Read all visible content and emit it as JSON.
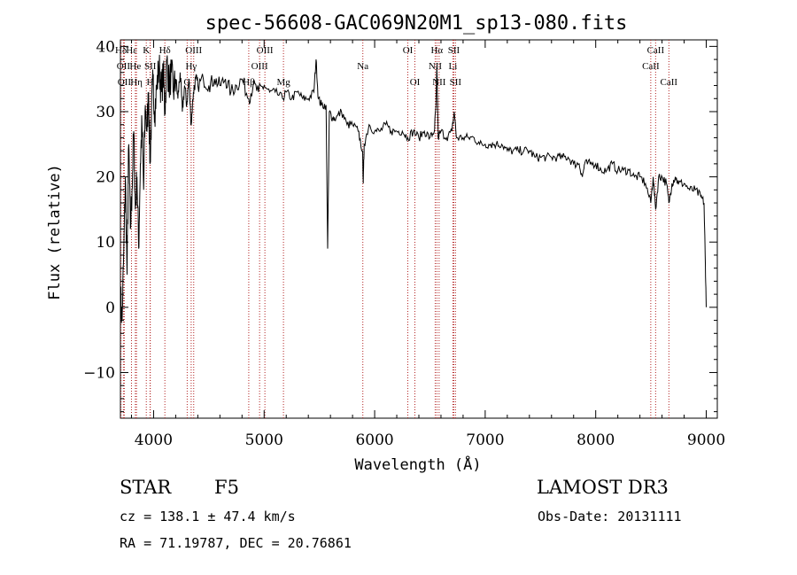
{
  "chart_data": {
    "type": "line",
    "title": "spec-56608-GAC069N20M1_sp13-080.fits",
    "xlabel": "Wavelength (Å)",
    "ylabel": "Flux (relative)",
    "xlim": [
      3700,
      9100
    ],
    "ylim": [
      -17,
      41
    ],
    "xticks": [
      4000,
      5000,
      6000,
      7000,
      8000,
      9000
    ],
    "yticks": [
      -10,
      0,
      10,
      20,
      30,
      40
    ],
    "grid": false,
    "line_color": "#000000",
    "marker_color": "#b22222",
    "series": [
      {
        "name": "spectrum",
        "points": [
          [
            3700,
            2
          ],
          [
            3715,
            -2
          ],
          [
            3730,
            8
          ],
          [
            3745,
            20
          ],
          [
            3760,
            5
          ],
          [
            3775,
            25
          ],
          [
            3790,
            12
          ],
          [
            3805,
            18
          ],
          [
            3820,
            27
          ],
          [
            3835,
            15
          ],
          [
            3850,
            20
          ],
          [
            3865,
            9
          ],
          [
            3880,
            22
          ],
          [
            3895,
            28
          ],
          [
            3910,
            18
          ],
          [
            3925,
            31
          ],
          [
            3940,
            27
          ],
          [
            3955,
            33
          ],
          [
            3968,
            22
          ],
          [
            3980,
            29
          ],
          [
            3995,
            35
          ],
          [
            4010,
            30
          ],
          [
            4030,
            34
          ],
          [
            4050,
            37
          ],
          [
            4070,
            33
          ],
          [
            4090,
            36
          ],
          [
            4102,
            30
          ],
          [
            4120,
            38
          ],
          [
            4140,
            34
          ],
          [
            4160,
            36
          ],
          [
            4180,
            33
          ],
          [
            4200,
            35
          ],
          [
            4220,
            32
          ],
          [
            4240,
            36
          ],
          [
            4260,
            30
          ],
          [
            4280,
            34
          ],
          [
            4300,
            31
          ],
          [
            4320,
            35
          ],
          [
            4340,
            28
          ],
          [
            4360,
            33
          ],
          [
            4380,
            35
          ],
          [
            4400,
            34
          ],
          [
            4450,
            35
          ],
          [
            4500,
            34
          ],
          [
            4550,
            35
          ],
          [
            4600,
            34
          ],
          [
            4650,
            35
          ],
          [
            4700,
            33
          ],
          [
            4750,
            34
          ],
          [
            4800,
            35
          ],
          [
            4861,
            32
          ],
          [
            4900,
            34
          ],
          [
            4950,
            33
          ],
          [
            5000,
            34
          ],
          [
            5050,
            33
          ],
          [
            5100,
            33
          ],
          [
            5167,
            32
          ],
          [
            5200,
            33
          ],
          [
            5250,
            32
          ],
          [
            5300,
            33
          ],
          [
            5350,
            32
          ],
          [
            5400,
            32
          ],
          [
            5450,
            33
          ],
          [
            5470,
            38
          ],
          [
            5490,
            32
          ],
          [
            5520,
            31
          ],
          [
            5560,
            31
          ],
          [
            5575,
            9
          ],
          [
            5590,
            30
          ],
          [
            5620,
            29
          ],
          [
            5650,
            29
          ],
          [
            5700,
            30
          ],
          [
            5750,
            28
          ],
          [
            5800,
            28
          ],
          [
            5850,
            27
          ],
          [
            5890,
            24
          ],
          [
            5897,
            19
          ],
          [
            5905,
            25
          ],
          [
            5950,
            28
          ],
          [
            6000,
            27
          ],
          [
            6050,
            27
          ],
          [
            6100,
            28
          ],
          [
            6150,
            27
          ],
          [
            6200,
            27
          ],
          [
            6250,
            27
          ],
          [
            6300,
            26
          ],
          [
            6350,
            27
          ],
          [
            6400,
            26
          ],
          [
            6450,
            27
          ],
          [
            6500,
            26
          ],
          [
            6540,
            27
          ],
          [
            6555,
            31
          ],
          [
            6563,
            37
          ],
          [
            6575,
            26
          ],
          [
            6600,
            27
          ],
          [
            6650,
            26
          ],
          [
            6700,
            27
          ],
          [
            6720,
            30
          ],
          [
            6740,
            26
          ],
          [
            6800,
            26
          ],
          [
            6850,
            26
          ],
          [
            6900,
            26
          ],
          [
            6950,
            25
          ],
          [
            7000,
            25
          ],
          [
            7050,
            25
          ],
          [
            7100,
            25
          ],
          [
            7150,
            25
          ],
          [
            7200,
            24
          ],
          [
            7250,
            24
          ],
          [
            7300,
            24
          ],
          [
            7350,
            24
          ],
          [
            7400,
            24
          ],
          [
            7450,
            23
          ],
          [
            7500,
            23
          ],
          [
            7550,
            23
          ],
          [
            7600,
            23
          ],
          [
            7650,
            23
          ],
          [
            7700,
            23
          ],
          [
            7750,
            23
          ],
          [
            7800,
            22
          ],
          [
            7850,
            22
          ],
          [
            7880,
            20
          ],
          [
            7900,
            22
          ],
          [
            7950,
            22
          ],
          [
            8000,
            22
          ],
          [
            8050,
            21
          ],
          [
            8100,
            21
          ],
          [
            8150,
            22
          ],
          [
            8200,
            21
          ],
          [
            8250,
            21
          ],
          [
            8300,
            21
          ],
          [
            8350,
            20
          ],
          [
            8400,
            20
          ],
          [
            8450,
            19
          ],
          [
            8498,
            16
          ],
          [
            8520,
            20
          ],
          [
            8542,
            15
          ],
          [
            8570,
            20
          ],
          [
            8600,
            20
          ],
          [
            8640,
            19
          ],
          [
            8662,
            16
          ],
          [
            8690,
            19
          ],
          [
            8720,
            20
          ],
          [
            8750,
            19
          ],
          [
            8800,
            19
          ],
          [
            8850,
            18
          ],
          [
            8900,
            18
          ],
          [
            8950,
            17
          ],
          [
            8980,
            16
          ],
          [
            8990,
            8
          ],
          [
            9000,
            0
          ]
        ]
      }
    ],
    "lines": [
      {
        "label": "Hδ",
        "wl": 3705,
        "row": 0
      },
      {
        "label": "OII",
        "wl": 3727,
        "row": 1
      },
      {
        "label": "OII",
        "wl": 3735,
        "row": 2
      },
      {
        "label": "Hε",
        "wl": 3800,
        "row": 0
      },
      {
        "label": "He",
        "wl": 3835,
        "row": 1
      },
      {
        "label": "Hη",
        "wl": 3845,
        "row": 2
      },
      {
        "label": "K",
        "wl": 3934,
        "row": 0
      },
      {
        "label": "SII",
        "wl": 3970,
        "row": 1
      },
      {
        "label": "H",
        "wl": 3968,
        "row": 2
      },
      {
        "label": "Hδ",
        "wl": 4102,
        "row": 0
      },
      {
        "label": "OIII",
        "wl": 4363,
        "row": 0
      },
      {
        "label": "Hγ",
        "wl": 4340,
        "row": 1
      },
      {
        "label": "G",
        "wl": 4304,
        "row": 2
      },
      {
        "label": "OIII",
        "wl": 5007,
        "row": 0
      },
      {
        "label": "OIII",
        "wl": 4959,
        "row": 1
      },
      {
        "label": "Hβ",
        "wl": 4861,
        "row": 2
      },
      {
        "label": "Mg",
        "wl": 5175,
        "row": 2
      },
      {
        "label": "Na",
        "wl": 5893,
        "row": 1
      },
      {
        "label": "OI",
        "wl": 6300,
        "row": 0
      },
      {
        "label": "OI",
        "wl": 6364,
        "row": 2
      },
      {
        "label": "Hα",
        "wl": 6563,
        "row": 0
      },
      {
        "label": "NII",
        "wl": 6548,
        "row": 1
      },
      {
        "label": "NII",
        "wl": 6583,
        "row": 2
      },
      {
        "label": "SII",
        "wl": 6716,
        "row": 0
      },
      {
        "label": "Li",
        "wl": 6708,
        "row": 1
      },
      {
        "label": "SII",
        "wl": 6731,
        "row": 2
      },
      {
        "label": "CaII",
        "wl": 8542,
        "row": 0
      },
      {
        "label": "CaII",
        "wl": 8498,
        "row": 1
      },
      {
        "label": "CaII",
        "wl": 8662,
        "row": 2
      }
    ]
  },
  "footer": {
    "class_label": "STAR",
    "subclass": "F5",
    "survey": "LAMOST DR3",
    "cz": "cz = 138.1 ± 47.4 km/s",
    "obs_date": "Obs-Date: 20131111",
    "coords": "RA =  71.19787, DEC =  20.76861"
  }
}
